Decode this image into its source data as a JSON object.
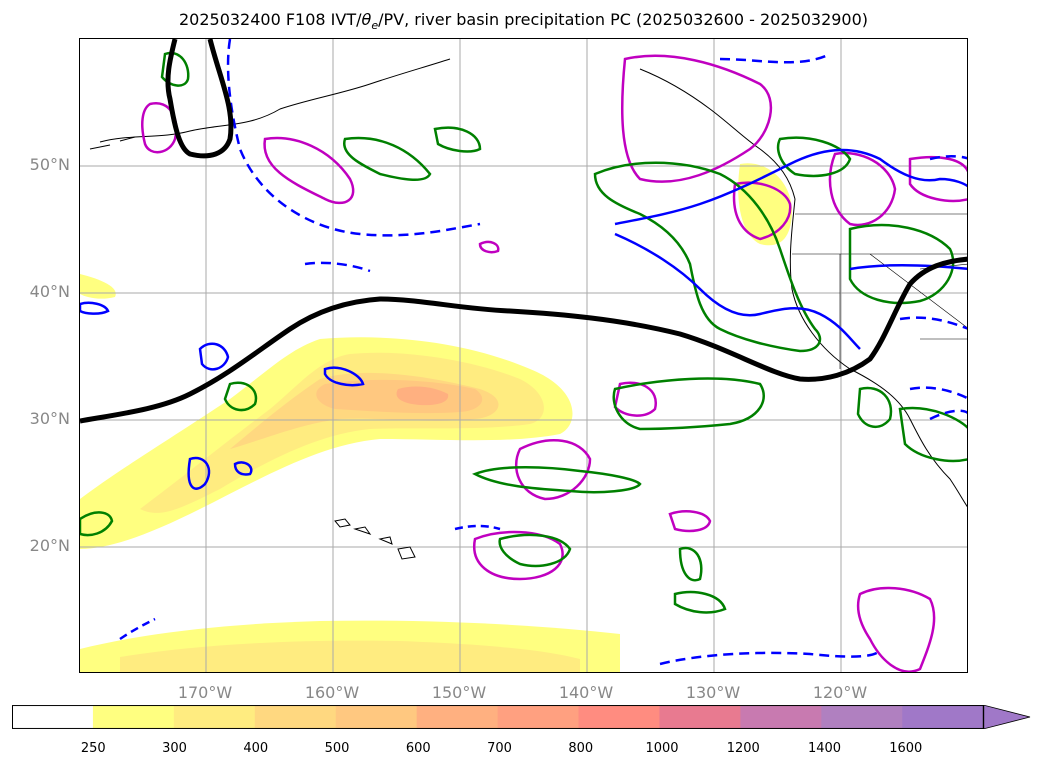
{
  "title": {
    "prefix": "2025032400 F108 IVT/",
    "theta": "θ",
    "theta_sub": "e",
    "suffix": "/PV, river basin precipitation PC (2025032600 - 2025032900)"
  },
  "lat_labels": [
    "50°N",
    "40°N",
    "30°N",
    "20°N"
  ],
  "lon_labels": [
    "170°W",
    "160°W",
    "150°W",
    "140°W",
    "130°W",
    "120°W"
  ],
  "colorbar": {
    "ticks": [
      "250",
      "300",
      "400",
      "500",
      "600",
      "700",
      "800",
      "1000",
      "1200",
      "1400",
      "1600"
    ],
    "colors": [
      "#ffffff",
      "#ffff80",
      "#ffec80",
      "#ffd880",
      "#ffc880",
      "#ffb080",
      "#ffa080",
      "#ff8c80",
      "#e87a90",
      "#c87ab0",
      "#b080c0",
      "#a078c8"
    ]
  },
  "colors": {
    "pv_contour": "#000000",
    "theta_positive": "#0000ff",
    "precip_green": "#008000",
    "precip_magenta": "#c000c0",
    "grid": "#aaaaaa",
    "coast": "#000000"
  }
}
